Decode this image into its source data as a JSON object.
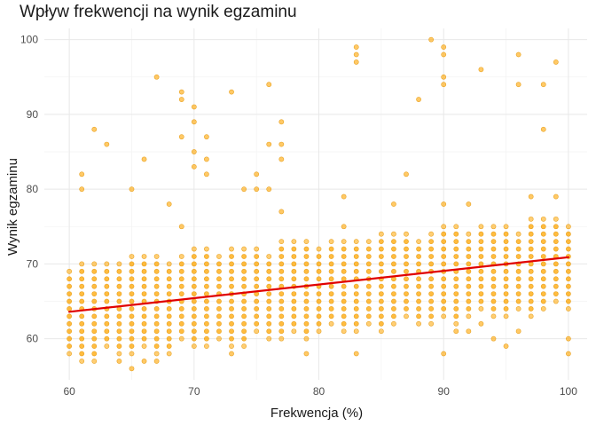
{
  "chart_data": {
    "type": "scatter",
    "title": "Wpływ frekwencji na wynik egzaminu",
    "xlabel": "Frekwencja (%)",
    "ylabel": "Wynik egzaminu",
    "xlim": [
      58,
      101.5
    ],
    "ylim": [
      54.5,
      101.5
    ],
    "x_ticks": [
      60,
      70,
      80,
      90,
      100
    ],
    "y_ticks": [
      60,
      70,
      80,
      90,
      100
    ],
    "grid": true,
    "point_color": "#FFA500",
    "point_edge_color": "#E39400",
    "fit_line_color": "#E00000",
    "fit_line": {
      "type": "linear",
      "x": [
        60,
        100
      ],
      "y": [
        63.6,
        70.9
      ]
    },
    "dense_region": {
      "x_range": [
        60,
        100
      ],
      "y_min_at_60": 57,
      "y_min_at_100": 64,
      "y_max_at_60": 70,
      "y_max_at_100": 76
    },
    "outliers": [
      [
        61,
        82
      ],
      [
        61,
        80
      ],
      [
        62,
        88
      ],
      [
        63,
        86
      ],
      [
        65,
        80
      ],
      [
        66,
        84
      ],
      [
        67,
        95
      ],
      [
        68,
        78
      ],
      [
        69,
        93
      ],
      [
        69,
        92
      ],
      [
        69,
        87
      ],
      [
        69,
        75
      ],
      [
        70,
        91
      ],
      [
        70,
        89
      ],
      [
        70,
        85
      ],
      [
        70,
        83
      ],
      [
        71,
        87
      ],
      [
        71,
        84
      ],
      [
        71,
        82
      ],
      [
        73,
        93
      ],
      [
        74,
        80
      ],
      [
        75,
        82
      ],
      [
        75,
        80
      ],
      [
        76,
        94
      ],
      [
        76,
        86
      ],
      [
        76,
        80
      ],
      [
        77,
        89
      ],
      [
        77,
        86
      ],
      [
        77,
        84
      ],
      [
        77,
        77
      ],
      [
        82,
        79
      ],
      [
        82,
        75
      ],
      [
        83,
        99
      ],
      [
        83,
        98
      ],
      [
        83,
        97
      ],
      [
        86,
        78
      ],
      [
        87,
        82
      ],
      [
        88,
        92
      ],
      [
        89,
        100
      ],
      [
        90,
        99
      ],
      [
        90,
        98
      ],
      [
        90,
        95
      ],
      [
        90,
        94
      ],
      [
        90,
        78
      ],
      [
        92,
        78
      ],
      [
        93,
        96
      ],
      [
        96,
        98
      ],
      [
        96,
        94
      ],
      [
        97,
        79
      ],
      [
        98,
        94
      ],
      [
        98,
        88
      ],
      [
        99,
        97
      ],
      [
        99,
        79
      ],
      [
        65,
        56
      ],
      [
        64,
        57
      ],
      [
        66,
        57
      ],
      [
        67,
        57
      ],
      [
        73,
        58
      ],
      [
        79,
        58
      ],
      [
        83,
        58
      ],
      [
        90,
        58
      ],
      [
        91,
        61
      ],
      [
        92,
        61
      ],
      [
        93,
        62
      ],
      [
        94,
        60
      ],
      [
        95,
        59
      ],
      [
        96,
        61
      ],
      [
        100,
        58
      ],
      [
        100,
        60
      ]
    ]
  }
}
